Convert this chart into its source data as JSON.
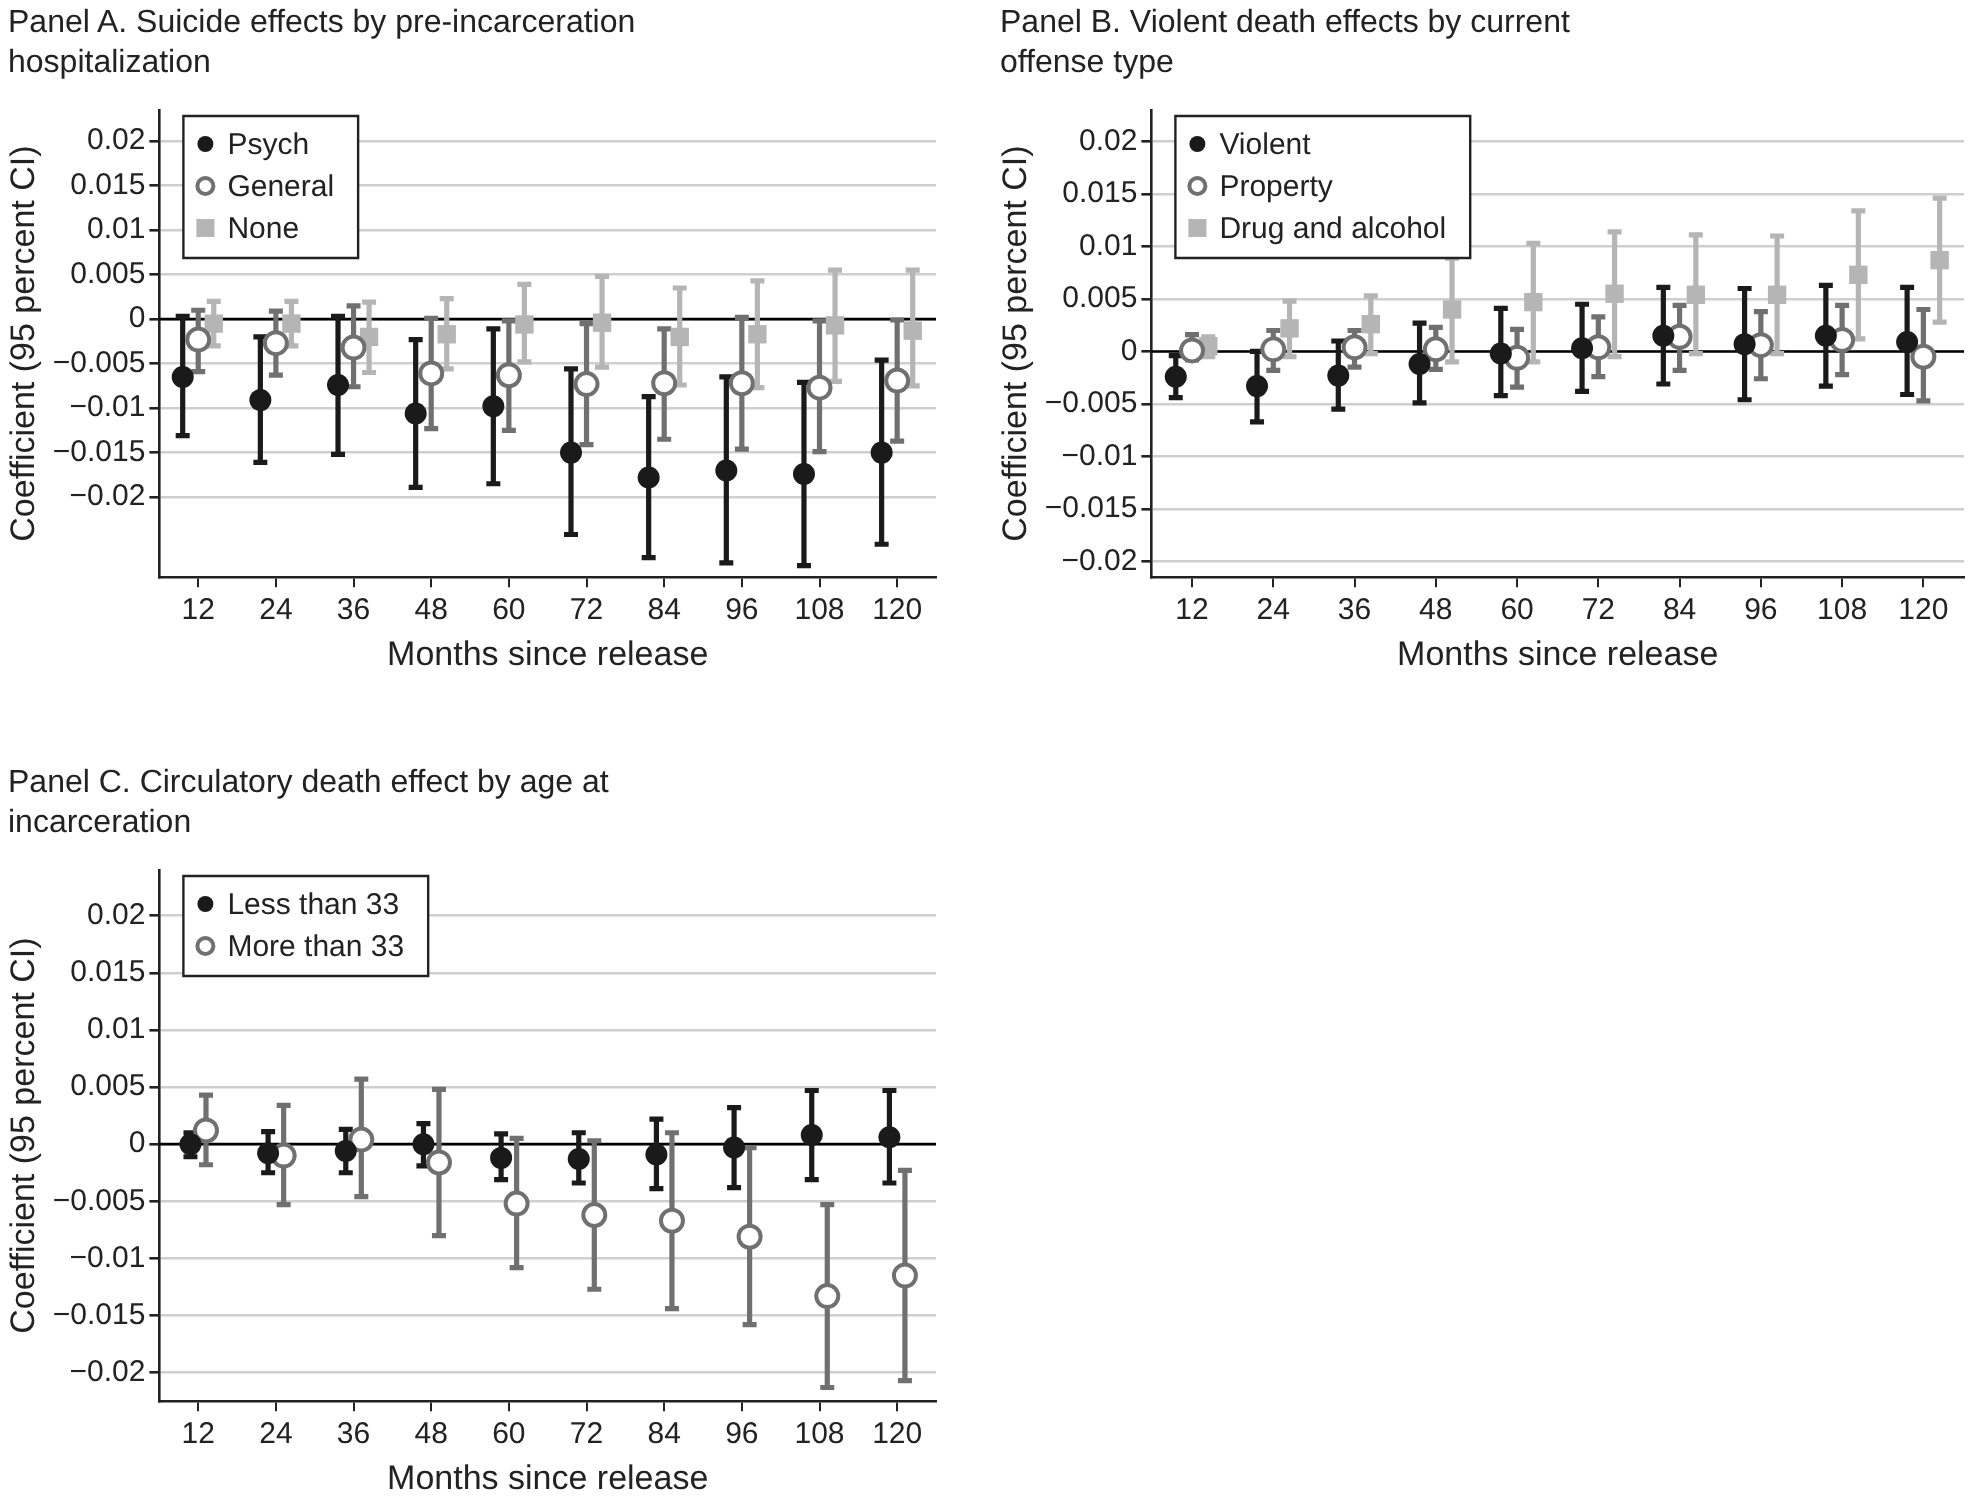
{
  "chart_data": [
    {
      "type": "scatter",
      "title": "Panel A. Suicide effects by pre-incarceration hospitalization",
      "xlabel": "Months since release",
      "ylabel": "Coefficient (95 percent CI)",
      "categories": [
        "12",
        "24",
        "36",
        "48",
        "60",
        "72",
        "84",
        "96",
        "108",
        "120"
      ],
      "ylim": [
        -0.029,
        0.0235
      ],
      "yticks": [
        {
          "value": -0.02,
          "label": "−0.02"
        },
        {
          "value": -0.015,
          "label": "−0.015"
        },
        {
          "value": -0.01,
          "label": "−0.01"
        },
        {
          "value": -0.005,
          "label": "−0.005"
        },
        0,
        0.005,
        0.01,
        0.015,
        0.02
      ],
      "grid": "y",
      "legend": "top left",
      "ref_lines": [
        {
          "axis": "y",
          "value": 0,
          "color": "#000000"
        }
      ],
      "series": [
        {
          "name": "Psych",
          "color": "#1a1a1a",
          "marker": "circle",
          "values": [
            -0.0065,
            -0.0091,
            -0.0074,
            -0.0106,
            -0.0098,
            -0.015,
            -0.0178,
            -0.017,
            -0.0174,
            -0.015
          ],
          "errors": [
            [
              -0.0131,
              0.0003
            ],
            [
              -0.0161,
              -0.002
            ],
            [
              -0.0152,
              0.0003
            ],
            [
              -0.0189,
              -0.0023
            ],
            [
              -0.0185,
              -0.0011
            ],
            [
              -0.0242,
              -0.0056
            ],
            [
              -0.0268,
              -0.0087
            ],
            [
              -0.0274,
              -0.0065
            ],
            [
              -0.0277,
              -0.0071
            ],
            [
              -0.0253,
              -0.0046
            ]
          ]
        },
        {
          "name": "General",
          "color": "#707070",
          "marker": "circle",
          "values": [
            -0.0023,
            -0.0027,
            -0.0032,
            -0.0061,
            -0.0063,
            -0.0073,
            -0.0072,
            -0.0072,
            -0.0077,
            -0.0069
          ],
          "errors": [
            [
              -0.0059,
              0.001
            ],
            [
              -0.0063,
              0.0009
            ],
            [
              -0.0076,
              0.0015
            ],
            [
              -0.0123,
              0.0001
            ],
            [
              -0.0125,
              -0.0002
            ],
            [
              -0.0141,
              -0.0005
            ],
            [
              -0.0135,
              -0.0011
            ],
            [
              -0.0146,
              0.0002
            ],
            [
              -0.0149,
              -0.0002
            ],
            [
              -0.0137,
              -0.0001
            ]
          ]
        },
        {
          "name": "None",
          "color": "#b5b5b5",
          "marker": "square",
          "values": [
            -0.0005,
            -0.0005,
            -0.002,
            -0.0017,
            -0.0006,
            -0.0004,
            -0.002,
            -0.0017,
            -0.0007,
            -0.0013
          ],
          "errors": [
            [
              -0.003,
              0.002
            ],
            [
              -0.003,
              0.002
            ],
            [
              -0.006,
              0.0019
            ],
            [
              -0.0056,
              0.0023
            ],
            [
              -0.0048,
              0.0039
            ],
            [
              -0.0054,
              0.0048
            ],
            [
              -0.0074,
              0.0035
            ],
            [
              -0.0077,
              0.0043
            ],
            [
              -0.007,
              0.0055
            ],
            [
              -0.0075,
              0.0055
            ]
          ]
        }
      ]
    },
    {
      "type": "scatter",
      "title": "Panel B. Violent death effects by current offense type",
      "xlabel": "Months since release",
      "ylabel": "Coefficient (95 percent CI)",
      "categories": [
        "12",
        "24",
        "36",
        "48",
        "60",
        "72",
        "84",
        "96",
        "108",
        "120"
      ],
      "ylim": [
        -0.0215,
        0.023
      ],
      "yticks": [
        {
          "value": -0.02,
          "label": "−0.02"
        },
        {
          "value": -0.015,
          "label": "−0.015"
        },
        {
          "value": -0.01,
          "label": "−0.01"
        },
        {
          "value": -0.005,
          "label": "−0.005"
        },
        0,
        0.005,
        0.01,
        0.015,
        0.02
      ],
      "grid": "y",
      "legend": "top left",
      "ref_lines": [
        {
          "axis": "y",
          "value": 0,
          "color": "#000000"
        }
      ],
      "series": [
        {
          "name": "Violent",
          "color": "#1a1a1a",
          "marker": "circle",
          "values": [
            -0.0024,
            -0.0033,
            -0.0023,
            -0.0012,
            -0.0002,
            0.0003,
            0.0015,
            0.0007,
            0.0015,
            0.0009
          ],
          "errors": [
            [
              -0.0044,
              -0.0004
            ],
            [
              -0.0067,
              0
            ],
            [
              -0.0055,
              0.001
            ],
            [
              -0.0049,
              0.0027
            ],
            [
              -0.0042,
              0.0041
            ],
            [
              -0.0038,
              0.0045
            ],
            [
              -0.0031,
              0.0061
            ],
            [
              -0.0046,
              0.006
            ],
            [
              -0.0033,
              0.0063
            ],
            [
              -0.0041,
              0.0061
            ]
          ]
        },
        {
          "name": "Property",
          "color": "#707070",
          "marker": "circle",
          "values": [
            0.0001,
            0.0002,
            0.0004,
            0.0002,
            -0.0006,
            0.0004,
            0.0014,
            0.0006,
            0.0011,
            -0.0005
          ],
          "errors": [
            [
              -0.0008,
              0.0016
            ],
            [
              -0.0018,
              0.002
            ],
            [
              -0.0015,
              0.002
            ],
            [
              -0.0017,
              0.0023
            ],
            [
              -0.0034,
              0.0021
            ],
            [
              -0.0024,
              0.0033
            ],
            [
              -0.0018,
              0.0044
            ],
            [
              -0.0026,
              0.0038
            ],
            [
              -0.0022,
              0.0044
            ],
            [
              -0.0047,
              0.004
            ]
          ]
        },
        {
          "name": "Drug and alcohol",
          "color": "#b5b5b5",
          "marker": "square",
          "values": [
            0.0005,
            0.0022,
            0.0026,
            0.004,
            0.0047,
            0.0055,
            0.0054,
            0.0054,
            0.0073,
            0.0087
          ],
          "errors": [
            [
              -0.0005,
              0.0014
            ],
            [
              -0.0005,
              0.0048
            ],
            [
              -0.0002,
              0.0053
            ],
            [
              -0.001,
              0.0089
            ],
            [
              -0.001,
              0.0103
            ],
            [
              -0.0005,
              0.0114
            ],
            [
              -0.0002,
              0.0111
            ],
            [
              -0.0002,
              0.011
            ],
            [
              0.0012,
              0.0134
            ],
            [
              0.0028,
              0.0146
            ]
          ]
        }
      ]
    },
    {
      "type": "scatter",
      "title": "Panel C. Circulatory death effect by age at incarceration",
      "xlabel": "Months since release",
      "ylabel": "Coefficient (95 percent CI)",
      "categories": [
        "12",
        "24",
        "36",
        "48",
        "60",
        "72",
        "84",
        "96",
        "108",
        "120"
      ],
      "ylim": [
        -0.0225,
        0.024
      ],
      "yticks": [
        {
          "value": -0.02,
          "label": "−0.02"
        },
        {
          "value": -0.015,
          "label": "−0.015"
        },
        {
          "value": -0.01,
          "label": "−0.01"
        },
        {
          "value": -0.005,
          "label": "−0.005"
        },
        0,
        0.005,
        0.01,
        0.015,
        0.02
      ],
      "grid": "y",
      "legend": "top left",
      "ref_lines": [
        {
          "axis": "y",
          "value": 0,
          "color": "#000000"
        }
      ],
      "series": [
        {
          "name": "Less than 33",
          "color": "#1a1a1a",
          "marker": "circle",
          "values": [
            0,
            -0.0008,
            -0.0006,
            0,
            -0.0012,
            -0.0013,
            -0.0009,
            -0.0003,
            0.0008,
            0.0006
          ],
          "errors": [
            [
              -0.0011,
              0.001
            ],
            [
              -0.0025,
              0.0011
            ],
            [
              -0.0025,
              0.0013
            ],
            [
              -0.0019,
              0.0018
            ],
            [
              -0.0031,
              0.0009
            ],
            [
              -0.0034,
              0.001
            ],
            [
              -0.0039,
              0.0022
            ],
            [
              -0.0038,
              0.0032
            ],
            [
              -0.0031,
              0.0047
            ],
            [
              -0.0034,
              0.0047
            ]
          ]
        },
        {
          "name": "More than 33",
          "color": "#707070",
          "marker": "circle",
          "values": [
            0.0012,
            -0.001,
            0.0004,
            -0.0016,
            -0.0052,
            -0.0062,
            -0.0067,
            -0.0081,
            -0.0133,
            -0.0115
          ],
          "errors": [
            [
              -0.0018,
              0.0043
            ],
            [
              -0.0053,
              0.0034
            ],
            [
              -0.0046,
              0.0057
            ],
            [
              -0.008,
              0.0048
            ],
            [
              -0.0108,
              0.0005
            ],
            [
              -0.0127,
              0.0003
            ],
            [
              -0.0144,
              0.001
            ],
            [
              -0.0158,
              -0.0003
            ],
            [
              -0.0213,
              -0.0053
            ],
            [
              -0.0207,
              -0.0023
            ]
          ]
        }
      ]
    }
  ]
}
